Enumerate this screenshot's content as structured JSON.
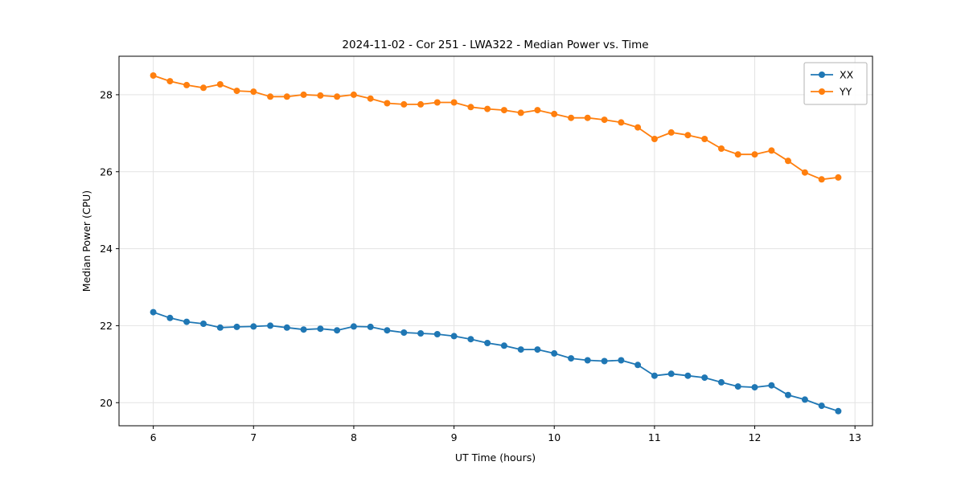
{
  "chart_data": {
    "type": "line",
    "title": "2024-11-02 - Cor 251 - LWA322 - Median Power vs. Time",
    "xlabel": "UT Time (hours)",
    "ylabel": "Median Power (CPU)",
    "xlim": [
      5.658,
      13.175
    ],
    "ylim": [
      19.4,
      29.0
    ],
    "xticks": [
      6,
      7,
      8,
      9,
      10,
      11,
      12,
      13
    ],
    "yticks": [
      20,
      22,
      24,
      26,
      28
    ],
    "grid": true,
    "legend_position": "upper right",
    "marker": "circle",
    "x": [
      6.0,
      6.167,
      6.333,
      6.5,
      6.667,
      6.833,
      7.0,
      7.167,
      7.333,
      7.5,
      7.667,
      7.833,
      8.0,
      8.167,
      8.333,
      8.5,
      8.667,
      8.833,
      9.0,
      9.167,
      9.333,
      9.5,
      9.667,
      9.833,
      10.0,
      10.167,
      10.333,
      10.5,
      10.667,
      10.833,
      11.0,
      11.167,
      11.333,
      11.5,
      11.667,
      11.833,
      12.0,
      12.167,
      12.333,
      12.5,
      12.667,
      12.833
    ],
    "series": [
      {
        "name": "XX",
        "color": "#1f77b4",
        "values": [
          22.35,
          22.2,
          22.1,
          22.05,
          21.95,
          21.97,
          21.98,
          22.0,
          21.95,
          21.9,
          21.92,
          21.88,
          21.98,
          21.97,
          21.88,
          21.82,
          21.8,
          21.78,
          21.73,
          21.65,
          21.55,
          21.48,
          21.38,
          21.38,
          21.28,
          21.15,
          21.1,
          21.08,
          21.1,
          20.98,
          20.7,
          20.75,
          20.7,
          20.65,
          20.53,
          20.42,
          20.4,
          20.45,
          20.2,
          20.08,
          19.92,
          19.78
        ]
      },
      {
        "name": "YY",
        "color": "#ff7f0e",
        "values": [
          28.5,
          28.35,
          28.25,
          28.18,
          28.27,
          28.1,
          28.08,
          27.95,
          27.95,
          28.0,
          27.98,
          27.95,
          28.0,
          27.9,
          27.78,
          27.75,
          27.75,
          27.8,
          27.8,
          27.68,
          27.63,
          27.6,
          27.53,
          27.6,
          27.5,
          27.4,
          27.4,
          27.35,
          27.28,
          27.15,
          26.85,
          27.02,
          26.95,
          26.85,
          26.6,
          26.45,
          26.45,
          26.55,
          26.28,
          25.98,
          25.8,
          25.85
        ]
      }
    ]
  }
}
